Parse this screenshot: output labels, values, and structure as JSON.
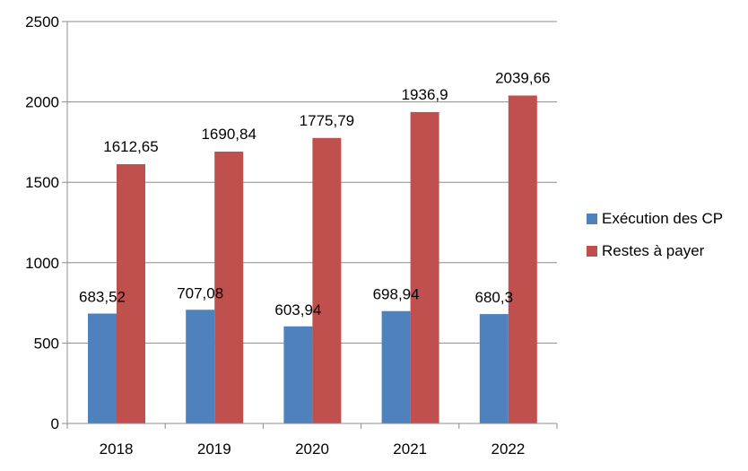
{
  "chart_data": {
    "type": "bar",
    "categories": [
      "2018",
      "2019",
      "2020",
      "2021",
      "2022"
    ],
    "series": [
      {
        "name": "Exécution des CP",
        "color": "#4F81BD",
        "values": [
          683.52,
          707.08,
          603.94,
          698.94,
          680.3
        ],
        "labels": [
          "683,52",
          "707,08",
          "603,94",
          "698,94",
          "680,3"
        ]
      },
      {
        "name": "Restes à payer",
        "color": "#C0504D",
        "values": [
          1612.65,
          1690.84,
          1775.79,
          1936.9,
          2039.66
        ],
        "labels": [
          "1612,65",
          "1690,84",
          "1775,79",
          "1936,9",
          "2039,66"
        ]
      }
    ],
    "ylim": [
      0,
      2500
    ],
    "yticks": [
      0,
      500,
      1000,
      1500,
      2000,
      2500
    ],
    "grid": true,
    "legend_position": "right"
  }
}
